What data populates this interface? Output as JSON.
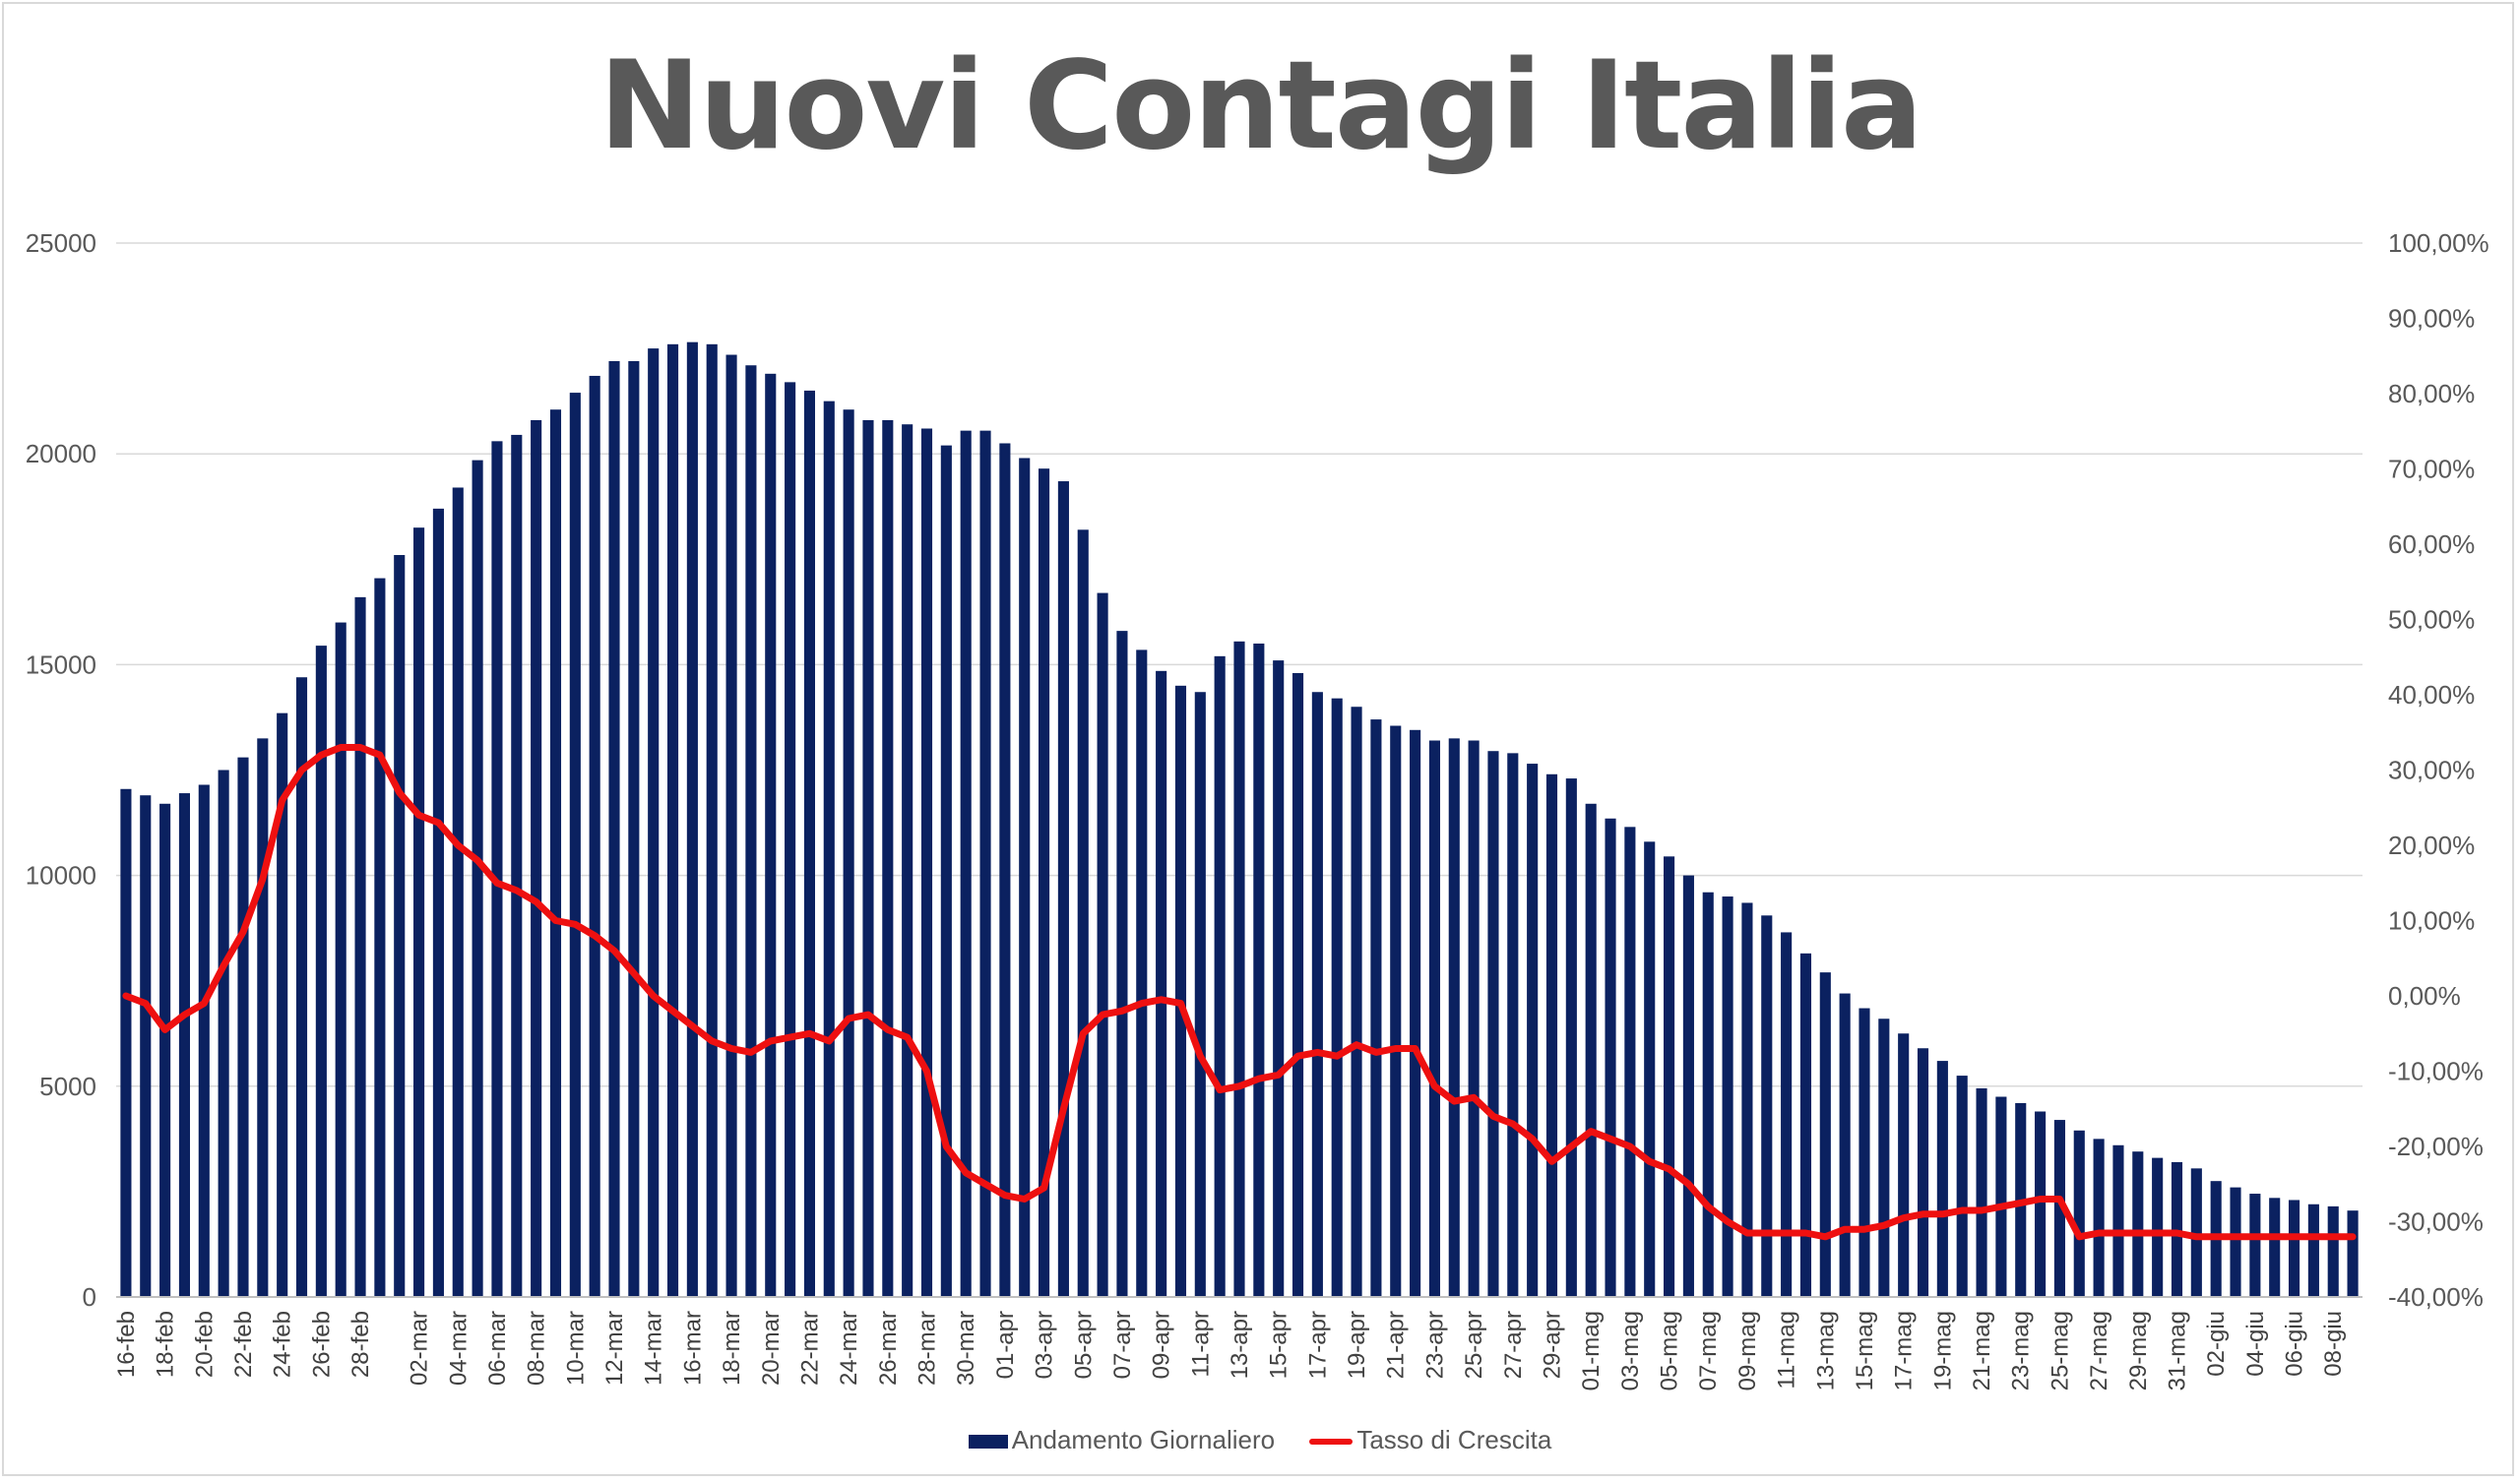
{
  "chart_data": {
    "type": "bar",
    "title": "Nuovi Contagi Italia",
    "xlabel": "",
    "ylabel": "",
    "ylim": [
      0,
      25000
    ],
    "y_ticks": [
      "0",
      "5000",
      "10000",
      "15000",
      "20000",
      "25000"
    ],
    "y2lim": [
      -40,
      100
    ],
    "y2_ticks": [
      "-40,00%",
      "-30,00%",
      "-20,00%",
      "-10,00%",
      "0,00%",
      "10,00%",
      "20,00%",
      "30,00%",
      "40,00%",
      "50,00%",
      "60,00%",
      "70,00%",
      "80,00%",
      "90,00%",
      "100,00%"
    ],
    "grid": true,
    "legend_position": "bottom",
    "categories": [
      "16-feb",
      "17-feb",
      "18-feb",
      "19-feb",
      "20-feb",
      "21-feb",
      "22-feb",
      "23-feb",
      "24-feb",
      "25-feb",
      "26-feb",
      "27-feb",
      "28-feb",
      "29-feb",
      "01-mar",
      "02-mar",
      "03-mar",
      "04-mar",
      "05-mar",
      "06-mar",
      "07-mar",
      "08-mar",
      "09-mar",
      "10-mar",
      "11-mar",
      "12-mar",
      "13-mar",
      "14-mar",
      "15-mar",
      "16-mar",
      "17-mar",
      "18-mar",
      "19-mar",
      "20-mar",
      "21-mar",
      "22-mar",
      "23-mar",
      "24-mar",
      "25-mar",
      "26-mar",
      "27-mar",
      "28-mar",
      "29-mar",
      "30-mar",
      "31-mar",
      "01-apr",
      "02-apr",
      "03-apr",
      "04-apr",
      "05-apr",
      "06-apr",
      "07-apr",
      "08-apr",
      "09-apr",
      "10-apr",
      "11-apr",
      "12-apr",
      "13-apr",
      "14-apr",
      "15-apr",
      "16-apr",
      "17-apr",
      "18-apr",
      "19-apr",
      "20-apr",
      "21-apr",
      "22-apr",
      "23-apr",
      "24-apr",
      "25-apr",
      "26-apr",
      "27-apr",
      "28-apr",
      "29-apr",
      "30-apr",
      "01-mag",
      "02-mag",
      "03-mag",
      "04-mag",
      "05-mag",
      "06-mag",
      "07-mag",
      "08-mag",
      "09-mag",
      "10-mag",
      "11-mag",
      "12-mag",
      "13-mag",
      "14-mag",
      "15-mag",
      "16-mag",
      "17-mag",
      "18-mag",
      "19-mag",
      "20-mag",
      "21-mag",
      "22-mag",
      "23-mag",
      "24-mag",
      "25-mag",
      "26-mag",
      "27-mag",
      "28-mag",
      "29-mag",
      "30-mag",
      "31-mag",
      "01-giu",
      "02-giu",
      "03-giu",
      "04-giu",
      "05-giu",
      "06-giu",
      "07-giu",
      "08-giu",
      "09-giu"
    ],
    "x_tick_labels": [
      "16-feb",
      "18-feb",
      "20-feb",
      "22-feb",
      "24-feb",
      "26-feb",
      "28-feb",
      "02-mar",
      "04-mar",
      "06-mar",
      "08-mar",
      "10-mar",
      "12-mar",
      "14-mar",
      "16-mar",
      "18-mar",
      "20-mar",
      "22-mar",
      "24-mar",
      "26-mar",
      "28-mar",
      "30-mar",
      "01-apr",
      "03-apr",
      "05-apr",
      "07-apr",
      "09-apr",
      "11-apr",
      "13-apr",
      "15-apr",
      "17-apr",
      "19-apr",
      "21-apr",
      "23-apr",
      "25-apr",
      "27-apr",
      "29-apr",
      "01-mag",
      "03-mag",
      "05-mag",
      "07-mag",
      "09-mag",
      "11-mag",
      "13-mag",
      "15-mag",
      "17-mag",
      "19-mag",
      "21-mag",
      "23-mag",
      "25-mag",
      "27-mag",
      "29-mag",
      "31-mag",
      "02-giu",
      "04-giu",
      "06-giu",
      "08-giu"
    ],
    "series": [
      {
        "name": "Andamento Giornaliero",
        "type": "bar",
        "axis": "left",
        "color": "#0b2160",
        "values": [
          12050,
          11900,
          11700,
          11950,
          12150,
          12500,
          12800,
          13250,
          13850,
          14700,
          15450,
          16000,
          16600,
          17050,
          17600,
          18250,
          18700,
          19200,
          19850,
          20300,
          20450,
          20800,
          21050,
          21450,
          21850,
          22200,
          22200,
          22500,
          22600,
          22650,
          22600,
          22350,
          22100,
          21900,
          21700,
          21500,
          21250,
          21050,
          20800,
          20800,
          20700,
          20600,
          20200,
          20550,
          20550,
          20250,
          19900,
          19650,
          19350,
          18200,
          16700,
          15800,
          15350,
          14850,
          14500,
          14350,
          15200,
          15550,
          15500,
          15100,
          14800,
          14350,
          14200,
          14000,
          13700,
          13550,
          13450,
          13200,
          13250,
          13200,
          12950,
          12900,
          12650,
          12400,
          12300,
          11700,
          11350,
          11150,
          10800,
          10450,
          10000,
          9600,
          9500,
          9350,
          9050,
          8650,
          8150,
          7700,
          7200,
          6850,
          6600,
          6250,
          5900,
          5600,
          5250,
          4950,
          4750,
          4600,
          4400,
          4200,
          3950,
          3750,
          3600,
          3450,
          3300,
          3200,
          3050,
          2750,
          2600,
          2450,
          2350,
          2300,
          2200,
          2150,
          2050
        ]
      },
      {
        "name": "Tasso di Crescita",
        "type": "line",
        "axis": "right",
        "color": "#ee1010",
        "values": [
          0,
          -1,
          -4.5,
          -2.5,
          -1,
          4,
          8.5,
          15.5,
          26,
          30,
          32,
          33,
          33,
          32,
          27,
          24,
          23,
          20,
          18,
          15,
          14,
          12.5,
          10,
          9.5,
          8,
          6,
          3,
          0,
          -2,
          -4,
          -6,
          -7,
          -7.5,
          -6,
          -5.5,
          -5,
          -6,
          -3,
          -2.5,
          -4.5,
          -5.5,
          -10,
          -20,
          -23.5,
          -25,
          -26.5,
          -27,
          -25.5,
          -15,
          -5,
          -2.5,
          -2,
          -1,
          -0.5,
          -1,
          -8,
          -12.5,
          -12,
          -11,
          -10.5,
          -8,
          -7.5,
          -8,
          -6.5,
          -7.5,
          -7,
          -7,
          -12,
          -14,
          -13.5,
          -16,
          -17,
          -19,
          -22,
          -20,
          -18,
          -19,
          -20,
          -22,
          -23,
          -25,
          -28,
          -30,
          -31.5,
          -31.5,
          -31.5,
          -31.5,
          -32,
          -31,
          -31,
          -30.5,
          -29.5,
          -29,
          -29,
          -28.5,
          -28.5,
          -28,
          -27.5,
          -27,
          -27,
          -32,
          -31.5,
          -31.5,
          -31.5,
          -31.5,
          -31.5,
          -32,
          -32,
          -32,
          -32,
          -32,
          -32,
          -32,
          -32,
          -32
        ]
      }
    ]
  },
  "legend": {
    "bar_label": "Andamento Giornaliero",
    "line_label": "Tasso di Crescita"
  }
}
